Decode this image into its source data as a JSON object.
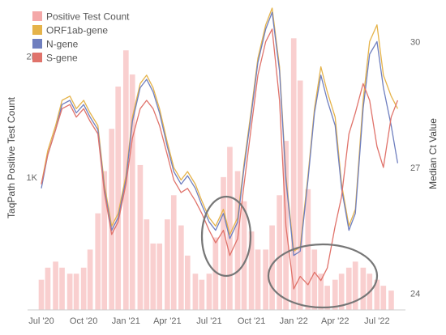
{
  "chart_data": {
    "type": "line",
    "title": "",
    "xlabel": "",
    "ylabel_left": "TaqPath Positive Test Count",
    "ylabel_right": "Median Ct Value",
    "x_ticks": [
      "Jul '20",
      "Oct '20",
      "Jan '21",
      "Apr '21",
      "Jul '21",
      "Oct '21",
      "Jan '22",
      "Apr '22",
      "Jul '22"
    ],
    "x_tick_dates": [
      "2020-07-01",
      "2020-10-01",
      "2021-01-01",
      "2021-04-01",
      "2021-07-01",
      "2021-10-01",
      "2022-01-01",
      "2022-04-01",
      "2022-07-01"
    ],
    "x_range": [
      "2020-06-01",
      "2022-09-01"
    ],
    "y_left_ticks": [
      {
        "value": 1000,
        "label": "1K"
      },
      {
        "value": 2000,
        "label": "2K"
      }
    ],
    "y_left_range": [
      -100,
      2400
    ],
    "y_right_ticks": [
      24,
      27,
      30
    ],
    "y_right_range": [
      23.6,
      30.8
    ],
    "grid": false,
    "legend_position": "top-left",
    "annotations": [
      "ellipse around Jul '21 dip",
      "ellipse around Jan–Apr '22 S-gene drop"
    ],
    "bars": {
      "name": "Positive Test Count",
      "axis": "left",
      "color": "#f4a8a8",
      "points": [
        [
          "2020-07-01",
          150
        ],
        [
          "2020-07-15",
          250
        ],
        [
          "2020-08-01",
          300
        ],
        [
          "2020-08-15",
          250
        ],
        [
          "2020-09-01",
          200
        ],
        [
          "2020-09-15",
          200
        ],
        [
          "2020-10-01",
          250
        ],
        [
          "2020-10-15",
          400
        ],
        [
          "2020-11-01",
          700
        ],
        [
          "2020-11-15",
          1050
        ],
        [
          "2020-12-01",
          1400
        ],
        [
          "2020-12-15",
          1750
        ],
        [
          "2021-01-01",
          2050
        ],
        [
          "2021-01-15",
          1850
        ],
        [
          "2021-02-01",
          1100
        ],
        [
          "2021-02-15",
          650
        ],
        [
          "2021-03-01",
          450
        ],
        [
          "2021-03-15",
          450
        ],
        [
          "2021-04-01",
          650
        ],
        [
          "2021-04-15",
          850
        ],
        [
          "2021-05-01",
          600
        ],
        [
          "2021-05-15",
          350
        ],
        [
          "2021-06-01",
          200
        ],
        [
          "2021-06-15",
          150
        ],
        [
          "2021-07-01",
          200
        ],
        [
          "2021-07-15",
          500
        ],
        [
          "2021-08-01",
          1000
        ],
        [
          "2021-08-15",
          1250
        ],
        [
          "2021-09-01",
          1050
        ],
        [
          "2021-09-15",
          800
        ],
        [
          "2021-10-01",
          550
        ],
        [
          "2021-10-15",
          400
        ],
        [
          "2021-11-01",
          400
        ],
        [
          "2021-11-15",
          600
        ],
        [
          "2021-12-01",
          850
        ],
        [
          "2021-12-15",
          1300
        ],
        [
          "2022-01-01",
          2150
        ],
        [
          "2022-01-15",
          1800
        ],
        [
          "2022-02-01",
          900
        ],
        [
          "2022-02-15",
          400
        ],
        [
          "2022-03-01",
          200
        ],
        [
          "2022-03-15",
          100
        ],
        [
          "2022-04-01",
          150
        ],
        [
          "2022-04-15",
          200
        ],
        [
          "2022-05-01",
          250
        ],
        [
          "2022-05-15",
          300
        ],
        [
          "2022-06-01",
          250
        ],
        [
          "2022-06-15",
          200
        ],
        [
          "2022-07-01",
          150
        ],
        [
          "2022-07-15",
          100
        ],
        [
          "2022-08-01",
          60
        ]
      ]
    },
    "series": [
      {
        "name": "ORF1ab-gene",
        "axis": "right",
        "color": "#e5b34a",
        "points": [
          [
            "2020-07-01",
            26.6
          ],
          [
            "2020-07-15",
            27.4
          ],
          [
            "2020-08-01",
            28.0
          ],
          [
            "2020-08-15",
            28.6
          ],
          [
            "2020-09-01",
            28.7
          ],
          [
            "2020-09-15",
            28.4
          ],
          [
            "2020-10-01",
            28.6
          ],
          [
            "2020-10-15",
            28.3
          ],
          [
            "2020-11-01",
            28.0
          ],
          [
            "2020-11-15",
            26.6
          ],
          [
            "2020-12-01",
            25.6
          ],
          [
            "2020-12-15",
            25.9
          ],
          [
            "2021-01-01",
            26.8
          ],
          [
            "2021-01-15",
            28.2
          ],
          [
            "2021-02-01",
            29.0
          ],
          [
            "2021-02-15",
            29.2
          ],
          [
            "2021-03-01",
            28.9
          ],
          [
            "2021-03-15",
            28.4
          ],
          [
            "2021-04-01",
            27.6
          ],
          [
            "2021-04-15",
            27.0
          ],
          [
            "2021-05-01",
            26.7
          ],
          [
            "2021-05-15",
            26.9
          ],
          [
            "2021-06-01",
            26.6
          ],
          [
            "2021-06-15",
            26.2
          ],
          [
            "2021-07-01",
            25.8
          ],
          [
            "2021-07-15",
            25.6
          ],
          [
            "2021-08-01",
            26.0
          ],
          [
            "2021-08-15",
            25.4
          ],
          [
            "2021-09-01",
            25.8
          ],
          [
            "2021-09-15",
            27.1
          ],
          [
            "2021-10-01",
            28.4
          ],
          [
            "2021-10-15",
            29.6
          ],
          [
            "2021-11-01",
            30.4
          ],
          [
            "2021-11-15",
            30.8
          ],
          [
            "2021-12-01",
            29.4
          ],
          [
            "2021-12-15",
            26.8
          ],
          [
            "2022-01-01",
            25.0
          ],
          [
            "2022-01-15",
            25.1
          ],
          [
            "2022-02-01",
            26.8
          ],
          [
            "2022-02-15",
            28.4
          ],
          [
            "2022-03-01",
            29.4
          ],
          [
            "2022-03-15",
            28.8
          ],
          [
            "2022-04-01",
            28.2
          ],
          [
            "2022-04-15",
            26.6
          ],
          [
            "2022-05-01",
            25.6
          ],
          [
            "2022-05-15",
            26.0
          ],
          [
            "2022-06-01",
            28.6
          ],
          [
            "2022-06-15",
            30.0
          ],
          [
            "2022-07-01",
            30.4
          ],
          [
            "2022-07-15",
            29.2
          ],
          [
            "2022-08-01",
            28.7
          ],
          [
            "2022-08-15",
            28.4
          ]
        ]
      },
      {
        "name": "N-gene",
        "axis": "right",
        "color": "#6f7fbf",
        "points": [
          [
            "2020-07-01",
            26.5
          ],
          [
            "2020-07-15",
            27.3
          ],
          [
            "2020-08-01",
            27.9
          ],
          [
            "2020-08-15",
            28.5
          ],
          [
            "2020-09-01",
            28.6
          ],
          [
            "2020-09-15",
            28.3
          ],
          [
            "2020-10-01",
            28.5
          ],
          [
            "2020-10-15",
            28.2
          ],
          [
            "2020-11-01",
            27.9
          ],
          [
            "2020-11-15",
            26.5
          ],
          [
            "2020-12-01",
            25.5
          ],
          [
            "2020-12-15",
            25.8
          ],
          [
            "2021-01-01",
            26.7
          ],
          [
            "2021-01-15",
            28.1
          ],
          [
            "2021-02-01",
            28.9
          ],
          [
            "2021-02-15",
            29.1
          ],
          [
            "2021-03-01",
            28.8
          ],
          [
            "2021-03-15",
            28.3
          ],
          [
            "2021-04-01",
            27.5
          ],
          [
            "2021-04-15",
            26.9
          ],
          [
            "2021-05-01",
            26.6
          ],
          [
            "2021-05-15",
            26.8
          ],
          [
            "2021-06-01",
            26.5
          ],
          [
            "2021-06-15",
            26.1
          ],
          [
            "2021-07-01",
            25.7
          ],
          [
            "2021-07-15",
            25.5
          ],
          [
            "2021-08-01",
            25.9
          ],
          [
            "2021-08-15",
            25.3
          ],
          [
            "2021-09-01",
            25.7
          ],
          [
            "2021-09-15",
            27.0
          ],
          [
            "2021-10-01",
            28.3
          ],
          [
            "2021-10-15",
            29.5
          ],
          [
            "2021-11-01",
            30.3
          ],
          [
            "2021-11-15",
            30.7
          ],
          [
            "2021-12-01",
            29.3
          ],
          [
            "2021-12-15",
            26.7
          ],
          [
            "2022-01-01",
            24.9
          ],
          [
            "2022-01-15",
            25.0
          ],
          [
            "2022-02-01",
            26.7
          ],
          [
            "2022-02-15",
            28.3
          ],
          [
            "2022-03-01",
            29.2
          ],
          [
            "2022-03-15",
            28.6
          ],
          [
            "2022-04-01",
            28.0
          ],
          [
            "2022-04-15",
            26.5
          ],
          [
            "2022-05-01",
            25.5
          ],
          [
            "2022-05-15",
            25.9
          ],
          [
            "2022-06-01",
            28.4
          ],
          [
            "2022-06-15",
            29.7
          ],
          [
            "2022-07-01",
            30.0
          ],
          [
            "2022-07-15",
            28.9
          ],
          [
            "2022-08-01",
            28.0
          ],
          [
            "2022-08-15",
            27.1
          ]
        ]
      },
      {
        "name": "S-gene",
        "axis": "right",
        "color": "#e0736b",
        "points": [
          [
            "2020-07-01",
            26.6
          ],
          [
            "2020-07-15",
            27.3
          ],
          [
            "2020-08-01",
            27.9
          ],
          [
            "2020-08-15",
            28.4
          ],
          [
            "2020-09-01",
            28.5
          ],
          [
            "2020-09-15",
            28.2
          ],
          [
            "2020-10-01",
            28.4
          ],
          [
            "2020-10-15",
            28.1
          ],
          [
            "2020-11-01",
            27.8
          ],
          [
            "2020-11-15",
            26.4
          ],
          [
            "2020-12-01",
            25.4
          ],
          [
            "2020-12-15",
            25.7
          ],
          [
            "2021-01-01",
            26.6
          ],
          [
            "2021-01-15",
            27.7
          ],
          [
            "2021-02-01",
            28.4
          ],
          [
            "2021-02-15",
            28.6
          ],
          [
            "2021-03-01",
            28.4
          ],
          [
            "2021-03-15",
            28.0
          ],
          [
            "2021-04-01",
            27.3
          ],
          [
            "2021-04-15",
            26.7
          ],
          [
            "2021-05-01",
            26.4
          ],
          [
            "2021-05-15",
            26.5
          ],
          [
            "2021-06-01",
            26.2
          ],
          [
            "2021-06-15",
            25.9
          ],
          [
            "2021-07-01",
            25.5
          ],
          [
            "2021-07-15",
            25.2
          ],
          [
            "2021-08-01",
            25.5
          ],
          [
            "2021-08-15",
            24.9
          ],
          [
            "2021-09-01",
            25.3
          ],
          [
            "2021-09-15",
            26.6
          ],
          [
            "2021-10-01",
            28.0
          ],
          [
            "2021-10-15",
            29.2
          ],
          [
            "2021-11-01",
            30.0
          ],
          [
            "2021-11-15",
            30.3
          ],
          [
            "2021-12-01",
            28.6
          ],
          [
            "2021-12-15",
            25.6
          ],
          [
            "2022-01-01",
            24.1
          ],
          [
            "2022-01-15",
            24.4
          ],
          [
            "2022-02-01",
            24.2
          ],
          [
            "2022-02-15",
            24.5
          ],
          [
            "2022-03-01",
            24.3
          ],
          [
            "2022-03-15",
            24.6
          ],
          [
            "2022-04-01",
            25.6
          ],
          [
            "2022-04-15",
            26.3
          ],
          [
            "2022-05-01",
            27.8
          ],
          [
            "2022-05-15",
            28.3
          ],
          [
            "2022-06-01",
            29.0
          ],
          [
            "2022-06-15",
            28.6
          ],
          [
            "2022-07-01",
            27.5
          ],
          [
            "2022-07-15",
            27.0
          ],
          [
            "2022-08-01",
            28.2
          ],
          [
            "2022-08-15",
            28.6
          ]
        ]
      }
    ]
  }
}
